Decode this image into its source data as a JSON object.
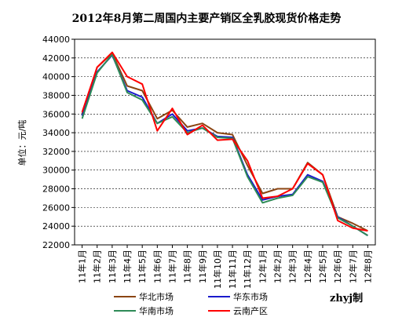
{
  "chart_data": {
    "type": "line",
    "title": "2012年8月第二周国内主要产销区全乳胶现货价格走势",
    "ylabel": "单位：元/吨",
    "ylim": [
      22000,
      44000
    ],
    "yticks": [
      22000,
      24000,
      26000,
      28000,
      30000,
      32000,
      34000,
      36000,
      38000,
      40000,
      42000,
      44000
    ],
    "categories": [
      "11年1月",
      "11年2月",
      "11年3月",
      "11年4月",
      "11年5月",
      "11年6月",
      "11年7月",
      "11年8月",
      "11年9月",
      "11年10月",
      "11年11月",
      "11年12月",
      "12年1月",
      "12年2月",
      "12年3月",
      "12年4月",
      "12年5月",
      "12年6月",
      "12年7月",
      "12年8月"
    ],
    "grid": true,
    "legend_position": "bottom",
    "credit": "zhyj制",
    "series": [
      {
        "name": "华北市场",
        "color": "#8b4513",
        "values": [
          36000,
          41000,
          42500,
          39000,
          38500,
          35500,
          36400,
          34600,
          35000,
          34000,
          33800,
          30500,
          27500,
          28000,
          28000,
          30800,
          29500,
          25000,
          24300,
          23500
        ]
      },
      {
        "name": "华东市场",
        "color": "#1a1acc",
        "values": [
          35800,
          40500,
          42300,
          38500,
          37800,
          35000,
          36000,
          34200,
          34500,
          33600,
          33500,
          29500,
          26800,
          27200,
          27400,
          29500,
          28800,
          25000,
          24000,
          23000
        ]
      },
      {
        "name": "华南市场",
        "color": "#2e8b57",
        "values": [
          35500,
          40400,
          42400,
          38300,
          37500,
          35000,
          35700,
          34000,
          34500,
          33500,
          33400,
          29300,
          26500,
          27000,
          27300,
          29300,
          28700,
          24900,
          24000,
          23000
        ]
      },
      {
        "name": "云南产区",
        "color": "#ff0000",
        "values": [
          36200,
          41000,
          42600,
          40000,
          39200,
          34200,
          36600,
          33800,
          34800,
          33200,
          33300,
          31000,
          27000,
          27200,
          28000,
          30700,
          29500,
          24600,
          23800,
          23500
        ]
      }
    ]
  }
}
